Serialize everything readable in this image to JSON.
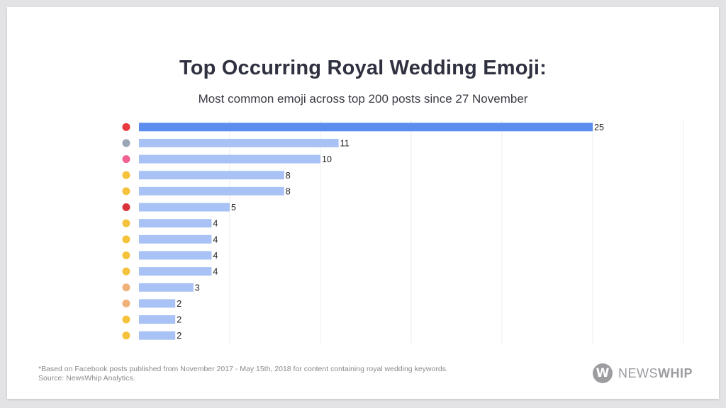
{
  "header": {
    "title": "Top Occurring Royal Wedding Emoji:",
    "subtitle": "Most common emoji across top 200 posts since 27 November"
  },
  "chart_data": {
    "type": "bar",
    "orientation": "horizontal",
    "categories": [
      {
        "icon": "red-heart",
        "color": "#e8393f"
      },
      {
        "icon": "ring",
        "color": "#9aa6b5"
      },
      {
        "icon": "two-hearts",
        "color": "#f06292"
      },
      {
        "icon": "grinning-face",
        "color": "#f5c33b"
      },
      {
        "icon": "face-with-tears-of-joy-crying",
        "color": "#f5c33b"
      },
      {
        "icon": "broken-heart",
        "color": "#d8333a"
      },
      {
        "icon": "clapping-hands",
        "color": "#f5c33b"
      },
      {
        "icon": "raising-hands",
        "color": "#f5c33b"
      },
      {
        "icon": "hugging-face",
        "color": "#f5c33b"
      },
      {
        "icon": "rolling-on-floor-laughing",
        "color": "#f5c33b"
      },
      {
        "icon": "bride-with-veil",
        "color": "#f0b27a"
      },
      {
        "icon": "woman-gesturing",
        "color": "#f0b27a"
      },
      {
        "icon": "winking-face",
        "color": "#f5c33b"
      },
      {
        "icon": "face-blowing-kiss",
        "color": "#f5c33b"
      }
    ],
    "values": [
      25,
      11,
      10,
      8,
      8,
      5,
      4,
      4,
      4,
      4,
      3,
      2,
      2,
      2
    ],
    "xlim": [
      0,
      30
    ],
    "grid": true,
    "colors": {
      "highlight": "#5b8def",
      "bar": "#a9c2f5",
      "grid": "#ececec"
    }
  },
  "footer": {
    "note": "*Based on Facebook posts published from November 2017 - May 15th, 2018 for content containing royal wedding keywords.",
    "source": "Source: NewsWhip Analytics.",
    "logo_letter": "W",
    "logo_news": "NEWS",
    "logo_whip": "WHIP"
  }
}
